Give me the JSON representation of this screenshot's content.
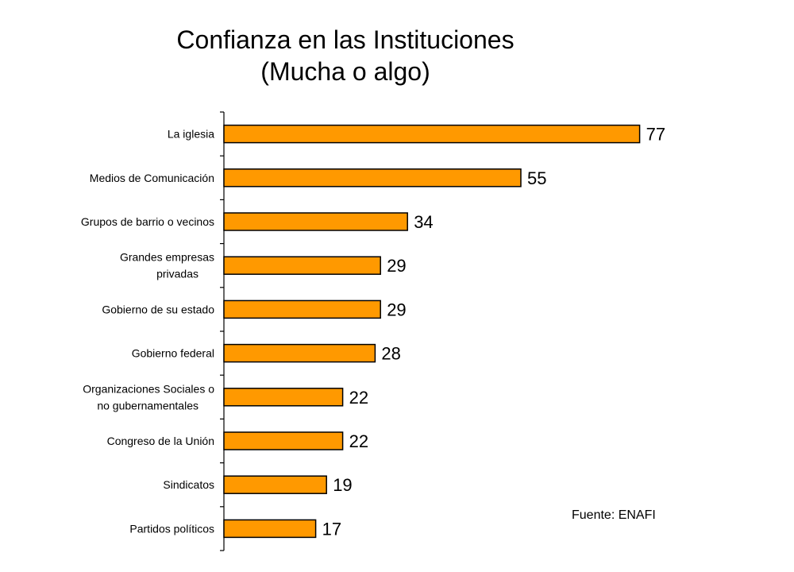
{
  "chart_data": {
    "type": "bar",
    "orientation": "horizontal",
    "title_lines": [
      "Confianza en las Instituciones",
      "(Mucha o algo)"
    ],
    "categories": [
      "La iglesia",
      "Medios de Comunicación",
      "Grupos de barrio o vecinos",
      "Grandes empresas privadas",
      "Gobierno de su estado",
      "Gobierno federal",
      "Organizaciones Sociales o no gubernamentales",
      "Congreso de la Unión",
      "Sindicatos",
      "Partidos políticos"
    ],
    "category_lines": [
      [
        "La iglesia"
      ],
      [
        "Medios de Comunicación"
      ],
      [
        "Grupos de barrio o vecinos"
      ],
      [
        "Grandes empresas",
        "privadas"
      ],
      [
        "Gobierno de su estado"
      ],
      [
        "Gobierno federal"
      ],
      [
        "Organizaciones Sociales o",
        "no gubernamentales"
      ],
      [
        "Congreso de la Unión"
      ],
      [
        "Sindicatos"
      ],
      [
        "Partidos políticos"
      ]
    ],
    "values": [
      77,
      55,
      34,
      29,
      29,
      28,
      22,
      22,
      19,
      17
    ],
    "value_labels": [
      "77",
      "55",
      "34",
      "29",
      "29",
      "28",
      "22",
      "22",
      "19",
      "17"
    ],
    "xlim": [
      0,
      100
    ],
    "grid": false,
    "legend": "none",
    "bar_color": "#ff9900",
    "bar_border_color": "#000000"
  },
  "source": "Fuente: ENAFI"
}
